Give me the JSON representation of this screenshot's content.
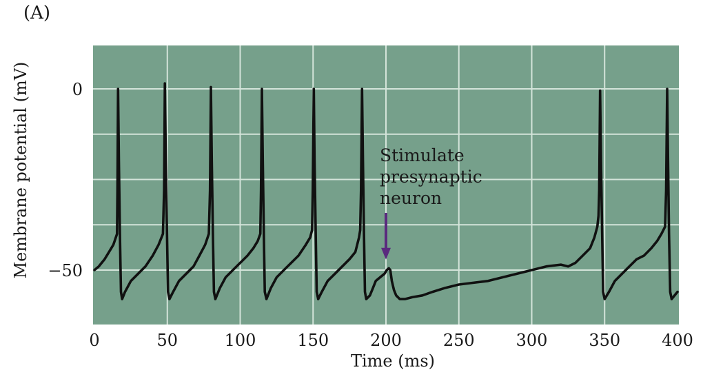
{
  "panel_label": "(A)",
  "chart_data": {
    "type": "line",
    "xlabel": "Time (ms)",
    "ylabel": "Membrane potential (mV)",
    "xlim": [
      0,
      400
    ],
    "ylim": [
      -65,
      12
    ],
    "xticks": [
      0,
      50,
      100,
      150,
      200,
      250,
      300,
      350,
      400
    ],
    "yticks": [
      0,
      -50
    ],
    "grid": true,
    "colors": {
      "background": "#76a08b",
      "grid": "#d4e4da",
      "trace": "#111111",
      "arrow": "#5a2a7e"
    },
    "annotation": {
      "lines": [
        "Stimulate",
        "presynaptic",
        "neuron"
      ],
      "x": 200,
      "y": -49
    },
    "series": [
      {
        "name": "Membrane potential",
        "points": [
          [
            0,
            -50
          ],
          [
            3,
            -49
          ],
          [
            7,
            -47
          ],
          [
            10,
            -45
          ],
          [
            13,
            -43
          ],
          [
            15.5,
            -40
          ],
          [
            15.8,
            -28
          ],
          [
            16.2,
            0
          ],
          [
            16.8,
            -20
          ],
          [
            17.5,
            -40
          ],
          [
            18.2,
            -56
          ],
          [
            19,
            -58
          ],
          [
            21,
            -56
          ],
          [
            25,
            -53
          ],
          [
            30,
            -51
          ],
          [
            35,
            -49
          ],
          [
            40,
            -46
          ],
          [
            44,
            -43
          ],
          [
            47,
            -40
          ],
          [
            47.8,
            -28
          ],
          [
            48.3,
            1.5
          ],
          [
            49,
            -20
          ],
          [
            49.8,
            -40
          ],
          [
            50.5,
            -56
          ],
          [
            51.5,
            -58
          ],
          [
            54,
            -56
          ],
          [
            58,
            -53
          ],
          [
            63,
            -51
          ],
          [
            68,
            -49
          ],
          [
            72,
            -46
          ],
          [
            76,
            -43
          ],
          [
            78.5,
            -40
          ],
          [
            79.3,
            -28
          ],
          [
            79.9,
            0.5
          ],
          [
            80.5,
            -20
          ],
          [
            81.3,
            -40
          ],
          [
            82,
            -56
          ],
          [
            83,
            -58
          ],
          [
            86,
            -55
          ],
          [
            90,
            -52
          ],
          [
            95,
            -50
          ],
          [
            100,
            -48
          ],
          [
            105,
            -46
          ],
          [
            109,
            -44
          ],
          [
            112,
            -42
          ],
          [
            113.8,
            -40
          ],
          [
            114.3,
            -28
          ],
          [
            114.9,
            0
          ],
          [
            115.5,
            -20
          ],
          [
            116.2,
            -40
          ],
          [
            116.9,
            -56
          ],
          [
            118,
            -58
          ],
          [
            121,
            -55
          ],
          [
            125,
            -52
          ],
          [
            130,
            -50
          ],
          [
            135,
            -48
          ],
          [
            140,
            -46
          ],
          [
            145,
            -43
          ],
          [
            148,
            -41
          ],
          [
            149.3,
            -39
          ],
          [
            149.8,
            -28
          ],
          [
            150.5,
            0
          ],
          [
            151,
            -20
          ],
          [
            151.8,
            -40
          ],
          [
            152.5,
            -56
          ],
          [
            153.5,
            -58
          ],
          [
            156,
            -56
          ],
          [
            160,
            -53
          ],
          [
            165,
            -51
          ],
          [
            170,
            -49
          ],
          [
            175,
            -47
          ],
          [
            179,
            -45
          ],
          [
            181.5,
            -41
          ],
          [
            182.3,
            -39
          ],
          [
            182.9,
            -28
          ],
          [
            183.6,
            0
          ],
          [
            184.2,
            -20
          ],
          [
            184.9,
            -40
          ],
          [
            185.6,
            -56
          ],
          [
            186.5,
            -58
          ],
          [
            189,
            -57
          ],
          [
            191,
            -55
          ],
          [
            193,
            -53
          ],
          [
            196,
            -52
          ],
          [
            199,
            -51
          ],
          [
            200.5,
            -50
          ],
          [
            202,
            -49.5
          ],
          [
            203,
            -50
          ],
          [
            204,
            -53
          ],
          [
            205.5,
            -55.5
          ],
          [
            207,
            -57
          ],
          [
            209.5,
            -58
          ],
          [
            213,
            -58
          ],
          [
            218,
            -57.5
          ],
          [
            225,
            -57
          ],
          [
            232,
            -56
          ],
          [
            240,
            -55
          ],
          [
            250,
            -54
          ],
          [
            260,
            -53.5
          ],
          [
            270,
            -53
          ],
          [
            280,
            -52
          ],
          [
            290,
            -51
          ],
          [
            300,
            -50
          ],
          [
            310,
            -49
          ],
          [
            320,
            -48.5
          ],
          [
            325,
            -49
          ],
          [
            330,
            -48
          ],
          [
            335,
            -46
          ],
          [
            340,
            -44
          ],
          [
            343,
            -41
          ],
          [
            345,
            -38
          ],
          [
            345.8,
            -35
          ],
          [
            346.3,
            -28
          ],
          [
            346.9,
            -0.5
          ],
          [
            347.5,
            -20
          ],
          [
            348.3,
            -40
          ],
          [
            349,
            -56
          ],
          [
            350,
            -58
          ],
          [
            353,
            -56
          ],
          [
            357,
            -53
          ],
          [
            362,
            -51
          ],
          [
            367,
            -49
          ],
          [
            372,
            -47
          ],
          [
            377,
            -46
          ],
          [
            382,
            -44
          ],
          [
            386,
            -42
          ],
          [
            389,
            -40
          ],
          [
            391.5,
            -38
          ],
          [
            392.2,
            -28
          ],
          [
            392.9,
            0
          ],
          [
            393.5,
            -20
          ],
          [
            394.2,
            -40
          ],
          [
            395,
            -56
          ],
          [
            396,
            -58
          ],
          [
            398,
            -57
          ],
          [
            400,
            -56
          ]
        ]
      }
    ]
  }
}
